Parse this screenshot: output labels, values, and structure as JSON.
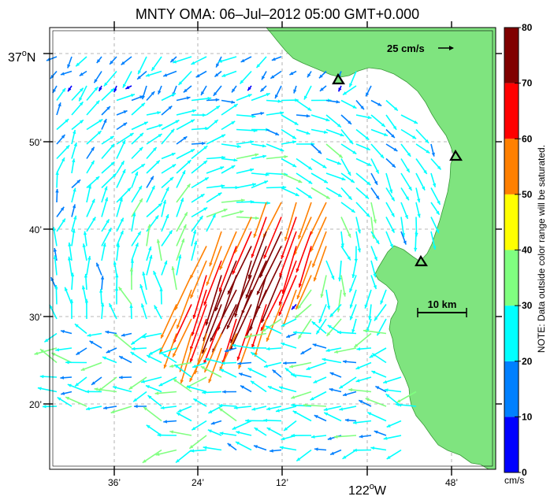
{
  "title": "MNTY OMA: 06–Jul–2012 05:00 GMT+0.000",
  "lat_labels": [
    {
      "deg": "37",
      "sym": "o",
      "hemi": "N"
    },
    {
      "text": "50’"
    },
    {
      "text": "40’"
    },
    {
      "text": "30’"
    },
    {
      "text": "20’"
    }
  ],
  "lon_labels": [
    {
      "text": "36’"
    },
    {
      "text": "24’"
    },
    {
      "text": "12’"
    },
    {
      "deg": "122",
      "sym": "o",
      "hemi": "W"
    },
    {
      "text": "48’"
    }
  ],
  "scale_arrow_label": "25 cm/s",
  "scale_bar_label": "10 km",
  "colorbar": {
    "ticks": [
      "0",
      "10",
      "20",
      "30",
      "40",
      "50",
      "60",
      "70",
      "80"
    ],
    "colors": [
      "#0000ff",
      "#0080ff",
      "#00ffff",
      "#80ff80",
      "#ffff00",
      "#ff8000",
      "#ff0000",
      "#800000"
    ],
    "unit": "cm/s",
    "note": "NOTE: Data outside color range will be saturated."
  },
  "colors": {
    "land": "#7fe47f",
    "land_shade": "#5ccf5c",
    "grid": "#a0a0a0",
    "station_fill": "#7fe47f"
  }
}
